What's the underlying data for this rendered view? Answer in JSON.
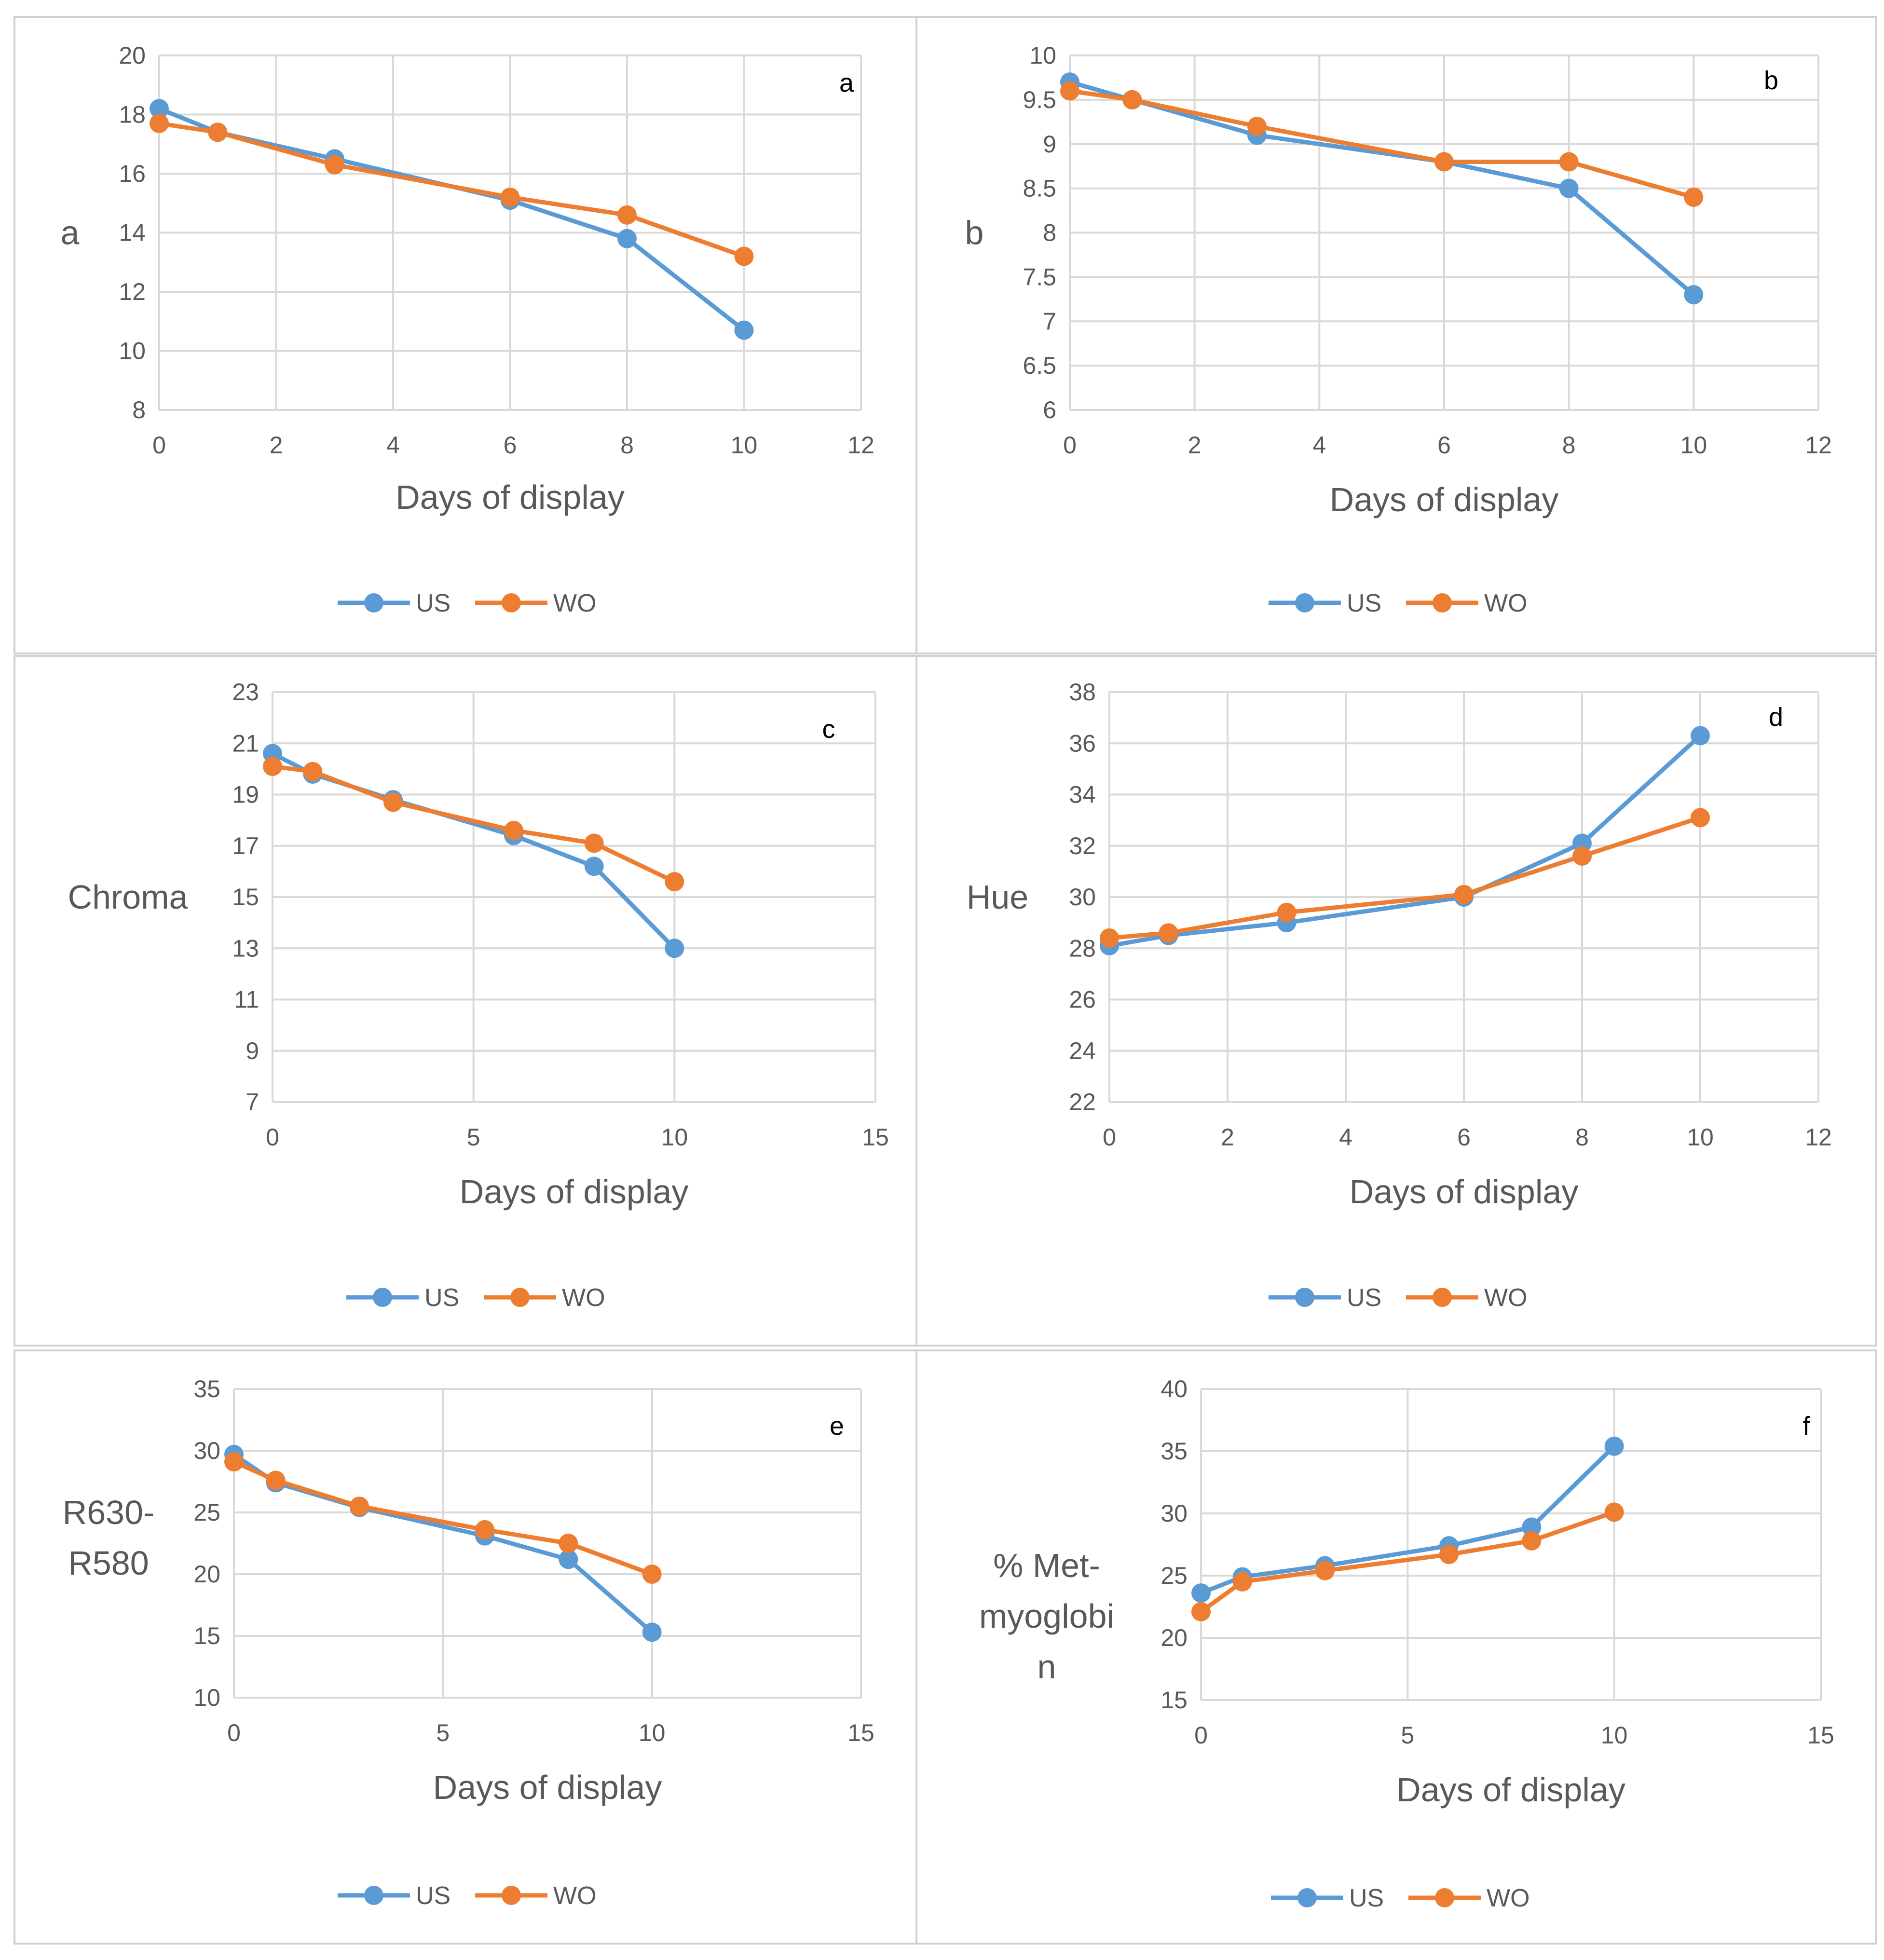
{
  "colors": {
    "US": "#5b9bd5",
    "WO": "#ed7d31",
    "grid": "#d9d9d9",
    "text": "#595959"
  },
  "legend": [
    "US",
    "WO"
  ],
  "chart_data": [
    {
      "type": "line",
      "panel_label": "a",
      "ylabel": "a",
      "xlabel": "Days of display",
      "xlim": [
        0,
        12
      ],
      "xticks": [
        0,
        2,
        4,
        6,
        8,
        10,
        12
      ],
      "ylim": [
        8,
        20
      ],
      "yticks": [
        8,
        10,
        12,
        14,
        16,
        18,
        20
      ],
      "x": [
        0,
        1,
        3,
        6,
        8,
        10
      ],
      "series": [
        {
          "name": "US",
          "values": [
            18.2,
            17.4,
            16.5,
            15.1,
            13.8,
            10.7
          ]
        },
        {
          "name": "WO",
          "values": [
            17.7,
            17.4,
            16.3,
            15.2,
            14.6,
            13.2
          ]
        }
      ]
    },
    {
      "type": "line",
      "panel_label": "b",
      "ylabel": "b",
      "xlabel": "Days of display",
      "xlim": [
        0,
        12
      ],
      "xticks": [
        0,
        2,
        4,
        6,
        8,
        10,
        12
      ],
      "ylim": [
        6,
        10
      ],
      "yticks": [
        6,
        6.5,
        7,
        7.5,
        8,
        8.5,
        9,
        9.5,
        10
      ],
      "x": [
        0,
        1,
        3,
        6,
        8,
        10
      ],
      "series": [
        {
          "name": "US",
          "values": [
            9.7,
            9.5,
            9.1,
            8.8,
            8.5,
            7.3
          ]
        },
        {
          "name": "WO",
          "values": [
            9.6,
            9.5,
            9.2,
            8.8,
            8.8,
            8.4
          ]
        }
      ]
    },
    {
      "type": "line",
      "panel_label": "c",
      "ylabel": "Chroma",
      "xlabel": "Days of display",
      "xlim": [
        0,
        15
      ],
      "xticks": [
        0,
        5,
        10,
        15
      ],
      "ylim": [
        7,
        23
      ],
      "yticks": [
        7,
        9,
        11,
        13,
        15,
        17,
        19,
        21,
        23
      ],
      "x": [
        0,
        1,
        3,
        6,
        8,
        10
      ],
      "series": [
        {
          "name": "US",
          "values": [
            20.6,
            19.8,
            18.8,
            17.4,
            16.2,
            13.0
          ]
        },
        {
          "name": "WO",
          "values": [
            20.1,
            19.9,
            18.7,
            17.6,
            17.1,
            15.6
          ]
        }
      ]
    },
    {
      "type": "line",
      "panel_label": "d",
      "ylabel": "Hue",
      "xlabel": "Days of display",
      "xlim": [
        0,
        12
      ],
      "xticks": [
        0,
        2,
        4,
        6,
        8,
        10,
        12
      ],
      "ylim": [
        22,
        38
      ],
      "yticks": [
        22,
        24,
        26,
        28,
        30,
        32,
        34,
        36,
        38
      ],
      "x": [
        0,
        1,
        3,
        6,
        8,
        10
      ],
      "series": [
        {
          "name": "US",
          "values": [
            28.1,
            28.5,
            29.0,
            30.0,
            32.1,
            36.3
          ]
        },
        {
          "name": "WO",
          "values": [
            28.4,
            28.6,
            29.4,
            30.1,
            31.6,
            33.1
          ]
        }
      ]
    },
    {
      "type": "line",
      "panel_label": "e",
      "ylabel": [
        "R630-",
        "R580"
      ],
      "xlabel": "Days of display",
      "xlim": [
        0,
        15
      ],
      "xticks": [
        0,
        5,
        10,
        15
      ],
      "ylim": [
        10,
        35
      ],
      "yticks": [
        10,
        15,
        20,
        25,
        30,
        35
      ],
      "x": [
        0,
        1,
        3,
        6,
        8,
        10
      ],
      "series": [
        {
          "name": "US",
          "values": [
            29.7,
            27.4,
            25.4,
            23.1,
            21.2,
            15.3
          ]
        },
        {
          "name": "WO",
          "values": [
            29.1,
            27.6,
            25.5,
            23.6,
            22.5,
            20.0
          ]
        }
      ]
    },
    {
      "type": "line",
      "panel_label": "f",
      "ylabel": [
        "% Met-",
        "myoglobi",
        "n"
      ],
      "xlabel": "Days of display",
      "xlim": [
        0,
        15
      ],
      "xticks": [
        0,
        5,
        10,
        15
      ],
      "ylim": [
        15,
        40
      ],
      "yticks": [
        15,
        20,
        25,
        30,
        35,
        40
      ],
      "x": [
        0,
        1,
        3,
        6,
        8,
        10
      ],
      "series": [
        {
          "name": "US",
          "values": [
            23.6,
            24.9,
            25.8,
            27.4,
            28.9,
            35.4
          ]
        },
        {
          "name": "WO",
          "values": [
            22.1,
            24.5,
            25.4,
            26.7,
            27.8,
            30.1
          ]
        }
      ]
    }
  ]
}
